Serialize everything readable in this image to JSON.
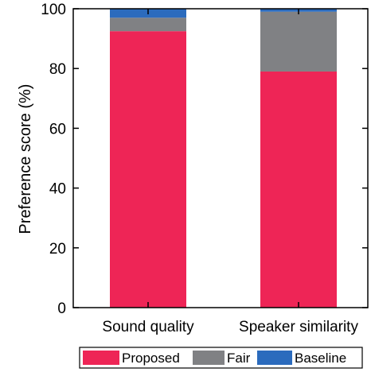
{
  "chart_data": {
    "type": "bar",
    "stacked": true,
    "categories": [
      "Sound quality",
      "Speaker similarity"
    ],
    "series": [
      {
        "name": "Proposed",
        "values": [
          92.5,
          79.0
        ],
        "color": "#ee2556"
      },
      {
        "name": "Fair",
        "values": [
          4.5,
          20.0
        ],
        "color": "#808184"
      },
      {
        "name": "Baseline",
        "values": [
          3.0,
          1.0
        ],
        "color": "#2b6bbd"
      }
    ],
    "title": "",
    "xlabel": "",
    "ylabel": "Preference score (%)",
    "ylim": [
      0,
      100
    ],
    "yticks": [
      0,
      20,
      40,
      60,
      80,
      100
    ],
    "grid": false,
    "legend_position": "bottom"
  }
}
